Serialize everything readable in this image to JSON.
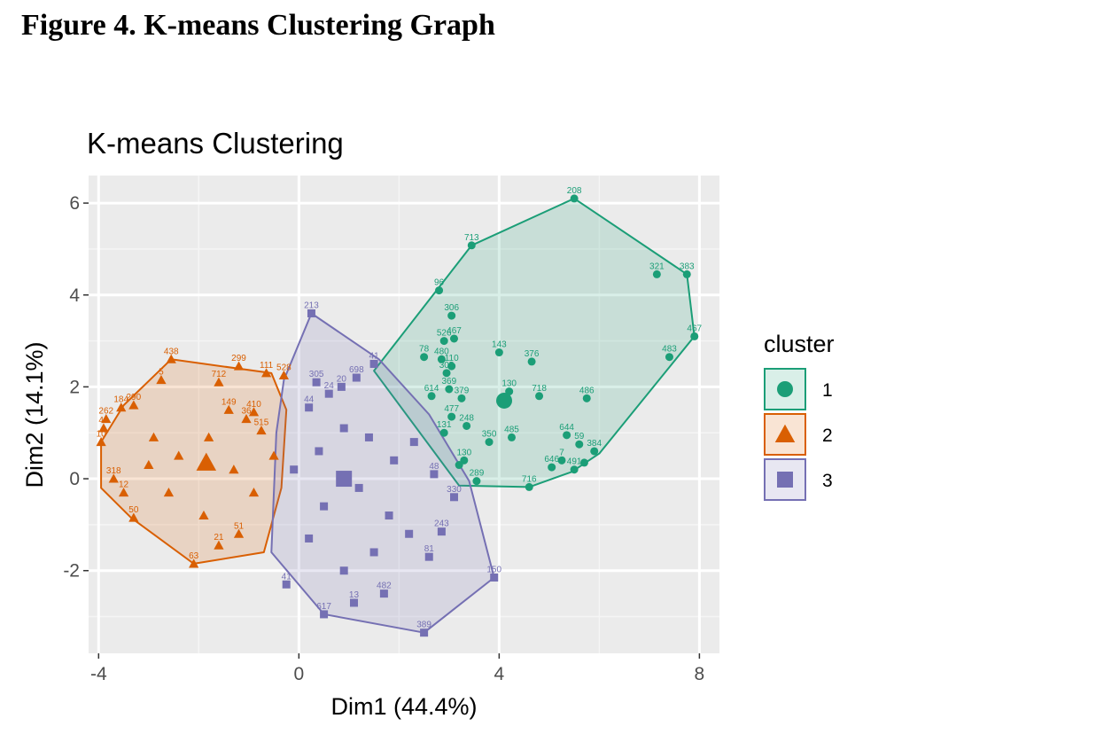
{
  "figure": {
    "caption": "Figure 4. K-means Clustering Graph"
  },
  "chart_data": {
    "type": "scatter",
    "title": "K-means Clustering",
    "xlabel": "Dim1 (44.4%)",
    "ylabel": "Dim2 (14.1%)",
    "xlim": [
      -4.2,
      8.4
    ],
    "ylim": [
      -3.8,
      6.6
    ],
    "xticks": [
      -4,
      0,
      4,
      8
    ],
    "yticks": [
      -2,
      0,
      2,
      4,
      6
    ],
    "grid": true,
    "legend": {
      "title": "cluster",
      "position": "right"
    },
    "clusters": [
      {
        "name": "1",
        "color": "#1B9E77",
        "shape": "circle",
        "hull": [
          [
            5.5,
            6.1
          ],
          [
            3.45,
            5.08
          ],
          [
            1.5,
            2.35
          ],
          [
            3.2,
            -0.15
          ],
          [
            4.6,
            -0.18
          ],
          [
            5.45,
            0.15
          ],
          [
            6.0,
            0.55
          ],
          [
            7.9,
            3.1
          ],
          [
            7.75,
            4.45
          ]
        ],
        "center": [
          4.1,
          1.7
        ],
        "points": [
          {
            "x": 5.5,
            "y": 6.1,
            "label": "208"
          },
          {
            "x": 3.45,
            "y": 5.08,
            "label": "713"
          },
          {
            "x": 7.15,
            "y": 4.45,
            "label": "321"
          },
          {
            "x": 7.75,
            "y": 4.45,
            "label": "383"
          },
          {
            "x": 7.9,
            "y": 3.1,
            "label": "467"
          },
          {
            "x": 7.4,
            "y": 2.65,
            "label": "483"
          },
          {
            "x": 2.8,
            "y": 4.1,
            "label": "96"
          },
          {
            "x": 3.05,
            "y": 3.55,
            "label": "306"
          },
          {
            "x": 2.9,
            "y": 3.0,
            "label": "526"
          },
          {
            "x": 3.1,
            "y": 3.05,
            "label": "467"
          },
          {
            "x": 4.0,
            "y": 2.75,
            "label": "143"
          },
          {
            "x": 4.65,
            "y": 2.55,
            "label": "376"
          },
          {
            "x": 2.5,
            "y": 2.65,
            "label": "78"
          },
          {
            "x": 2.85,
            "y": 2.6,
            "label": "480"
          },
          {
            "x": 3.05,
            "y": 2.45,
            "label": "110"
          },
          {
            "x": 2.95,
            "y": 2.3,
            "label": "305"
          },
          {
            "x": 3.0,
            "y": 1.95,
            "label": "369"
          },
          {
            "x": 3.25,
            "y": 1.75,
            "label": "379"
          },
          {
            "x": 2.65,
            "y": 1.8,
            "label": "614"
          },
          {
            "x": 4.2,
            "y": 1.9,
            "label": "130"
          },
          {
            "x": 4.8,
            "y": 1.8,
            "label": "718"
          },
          {
            "x": 5.75,
            "y": 1.75,
            "label": "486"
          },
          {
            "x": 3.05,
            "y": 1.35,
            "label": "477"
          },
          {
            "x": 3.35,
            "y": 1.15,
            "label": "248"
          },
          {
            "x": 2.9,
            "y": 1.0,
            "label": "131"
          },
          {
            "x": 3.8,
            "y": 0.8,
            "label": "350"
          },
          {
            "x": 4.25,
            "y": 0.9,
            "label": "485"
          },
          {
            "x": 5.35,
            "y": 0.95,
            "label": "644"
          },
          {
            "x": 5.6,
            "y": 0.75,
            "label": "59"
          },
          {
            "x": 5.9,
            "y": 0.6,
            "label": "384"
          },
          {
            "x": 5.25,
            "y": 0.4,
            "label": "7"
          },
          {
            "x": 5.05,
            "y": 0.25,
            "label": "646"
          },
          {
            "x": 5.5,
            "y": 0.2,
            "label": "491"
          },
          {
            "x": 5.7,
            "y": 0.35,
            "label": ""
          },
          {
            "x": 3.3,
            "y": 0.4,
            "label": "130"
          },
          {
            "x": 3.2,
            "y": 0.3,
            "label": ""
          },
          {
            "x": 3.55,
            "y": -0.05,
            "label": "289"
          },
          {
            "x": 4.6,
            "y": -0.18,
            "label": "716"
          }
        ]
      },
      {
        "name": "2",
        "color": "#D95F02",
        "shape": "triangle",
        "hull": [
          [
            -2.55,
            2.6
          ],
          [
            -0.55,
            2.3
          ],
          [
            -0.25,
            1.5
          ],
          [
            -0.35,
            -0.2
          ],
          [
            -0.7,
            -1.6
          ],
          [
            -2.1,
            -1.85
          ],
          [
            -3.35,
            -0.85
          ],
          [
            -3.95,
            -0.2
          ],
          [
            -3.95,
            0.8
          ],
          [
            -3.5,
            1.6
          ]
        ],
        "center": [
          -1.85,
          0.35
        ],
        "points": [
          {
            "x": -2.55,
            "y": 2.6,
            "label": "438"
          },
          {
            "x": -1.2,
            "y": 2.45,
            "label": "299"
          },
          {
            "x": -0.65,
            "y": 2.3,
            "label": "111"
          },
          {
            "x": -0.3,
            "y": 2.25,
            "label": "528"
          },
          {
            "x": -1.6,
            "y": 2.1,
            "label": "712"
          },
          {
            "x": -2.75,
            "y": 2.15,
            "label": "5"
          },
          {
            "x": -3.55,
            "y": 1.55,
            "label": "184"
          },
          {
            "x": -3.85,
            "y": 1.3,
            "label": "262"
          },
          {
            "x": -3.9,
            "y": 1.1,
            "label": "46"
          },
          {
            "x": -3.95,
            "y": 0.8,
            "label": "10"
          },
          {
            "x": -3.3,
            "y": 1.6,
            "label": "290"
          },
          {
            "x": -1.4,
            "y": 1.5,
            "label": "149"
          },
          {
            "x": -0.9,
            "y": 1.45,
            "label": "410"
          },
          {
            "x": -1.05,
            "y": 1.3,
            "label": "36"
          },
          {
            "x": -0.75,
            "y": 1.05,
            "label": "515"
          },
          {
            "x": -3.7,
            "y": 0.0,
            "label": "318"
          },
          {
            "x": -3.5,
            "y": -0.3,
            "label": "12"
          },
          {
            "x": -3.3,
            "y": -0.85,
            "label": "50"
          },
          {
            "x": -2.1,
            "y": -1.85,
            "label": "63"
          },
          {
            "x": -1.6,
            "y": -1.45,
            "label": "21"
          },
          {
            "x": -1.2,
            "y": -1.2,
            "label": "51"
          },
          {
            "x": -2.9,
            "y": 0.9,
            "label": ""
          },
          {
            "x": -2.4,
            "y": 0.5,
            "label": ""
          },
          {
            "x": -1.8,
            "y": 0.9,
            "label": ""
          },
          {
            "x": -1.3,
            "y": 0.2,
            "label": ""
          },
          {
            "x": -2.6,
            "y": -0.3,
            "label": ""
          },
          {
            "x": -0.9,
            "y": -0.3,
            "label": ""
          },
          {
            "x": -1.9,
            "y": -0.8,
            "label": ""
          },
          {
            "x": -0.5,
            "y": 0.5,
            "label": ""
          },
          {
            "x": -3.0,
            "y": 0.3,
            "label": ""
          }
        ]
      },
      {
        "name": "3",
        "color": "#7570B3",
        "shape": "square",
        "hull": [
          [
            0.25,
            3.6
          ],
          [
            1.6,
            2.6
          ],
          [
            2.6,
            1.4
          ],
          [
            3.4,
            -0.05
          ],
          [
            3.9,
            -2.15
          ],
          [
            2.5,
            -3.35
          ],
          [
            0.5,
            -2.95
          ],
          [
            -0.55,
            -1.6
          ],
          [
            -0.45,
            1.0
          ],
          [
            -0.3,
            2.15
          ]
        ],
        "center": [
          0.9,
          0.0
        ],
        "points": [
          {
            "x": 0.25,
            "y": 3.6,
            "label": "213"
          },
          {
            "x": 1.5,
            "y": 2.5,
            "label": "41"
          },
          {
            "x": 1.15,
            "y": 2.2,
            "label": "698"
          },
          {
            "x": 0.35,
            "y": 2.1,
            "label": "305"
          },
          {
            "x": 0.85,
            "y": 2.0,
            "label": "20"
          },
          {
            "x": 0.6,
            "y": 1.85,
            "label": "24"
          },
          {
            "x": 0.2,
            "y": 1.55,
            "label": "44"
          },
          {
            "x": 3.9,
            "y": -2.15,
            "label": "150"
          },
          {
            "x": 2.5,
            "y": -3.35,
            "label": "389"
          },
          {
            "x": 0.5,
            "y": -2.95,
            "label": "617"
          },
          {
            "x": 1.7,
            "y": -2.5,
            "label": "482"
          },
          {
            "x": 1.1,
            "y": -2.7,
            "label": "13"
          },
          {
            "x": -0.25,
            "y": -2.3,
            "label": "41"
          },
          {
            "x": 2.6,
            "y": -1.7,
            "label": "81"
          },
          {
            "x": 2.85,
            "y": -1.15,
            "label": "243"
          },
          {
            "x": 3.1,
            "y": -0.4,
            "label": "330"
          },
          {
            "x": 2.7,
            "y": 0.1,
            "label": "48"
          },
          {
            "x": 1.9,
            "y": 0.4,
            "label": ""
          },
          {
            "x": 0.9,
            "y": 1.1,
            "label": ""
          },
          {
            "x": 1.4,
            "y": 0.9,
            "label": ""
          },
          {
            "x": 0.4,
            "y": 0.6,
            "label": ""
          },
          {
            "x": -0.1,
            "y": 0.2,
            "label": ""
          },
          {
            "x": 1.2,
            "y": -0.2,
            "label": ""
          },
          {
            "x": 0.5,
            "y": -0.6,
            "label": ""
          },
          {
            "x": 1.8,
            "y": -0.8,
            "label": ""
          },
          {
            "x": 0.2,
            "y": -1.3,
            "label": ""
          },
          {
            "x": 1.5,
            "y": -1.6,
            "label": ""
          },
          {
            "x": 2.2,
            "y": -1.2,
            "label": ""
          },
          {
            "x": 0.9,
            "y": -2.0,
            "label": ""
          },
          {
            "x": 2.3,
            "y": 0.8,
            "label": ""
          }
        ]
      }
    ]
  }
}
